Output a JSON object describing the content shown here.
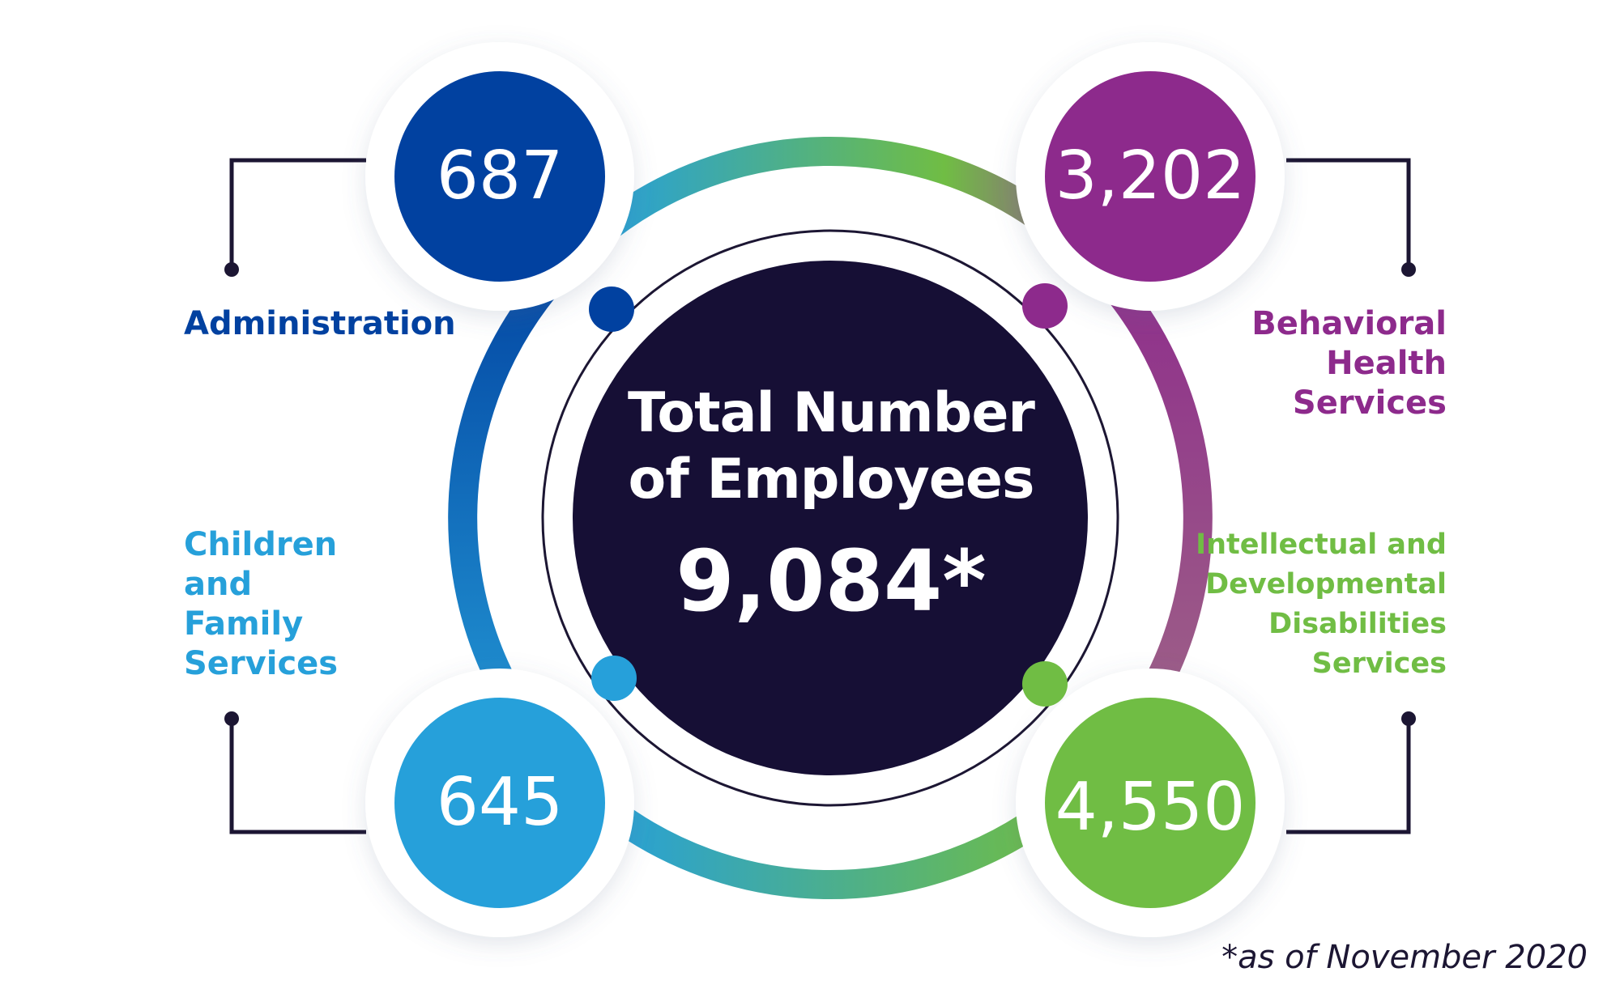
{
  "center": {
    "title_line1": "Total Number",
    "title_line2": "of Employees",
    "total": "9,084*"
  },
  "departments": [
    {
      "key": "administration",
      "value": "687",
      "label_lines": [
        "Administration"
      ],
      "color": "#0141a0"
    },
    {
      "key": "behavioral-health",
      "value": "3,202",
      "label_lines": [
        "Behavioral",
        "Health",
        "Services"
      ],
      "color": "#8d2a8c"
    },
    {
      "key": "children-family",
      "value": "645",
      "label_lines": [
        "Children",
        "and",
        "Family",
        "Services"
      ],
      "color": "#26a0da"
    },
    {
      "key": "idd",
      "value": "4,550",
      "label_lines": [
        "Intellectual and",
        "Developmental",
        "Disabilities",
        "Services"
      ],
      "color": "#70bd44"
    }
  ],
  "colors": {
    "center_fill": "#160f35",
    "connector": "#1c1633"
  },
  "footnote": "*as of November 2020"
}
